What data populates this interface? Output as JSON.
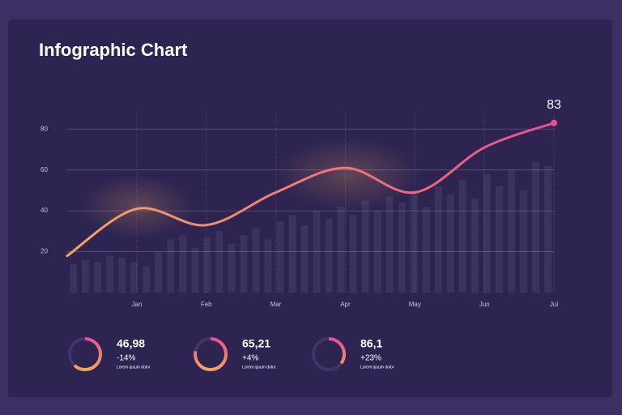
{
  "chart_data": {
    "type": "line",
    "title": "Infographic Chart",
    "categories": [
      null,
      "Jan",
      "Feb",
      "Mar",
      "Apr",
      "May",
      "Jun",
      "Jul"
    ],
    "values": [
      18,
      41,
      33,
      49,
      61,
      49,
      71,
      83
    ],
    "bars": [
      14,
      16,
      15,
      18,
      17,
      15,
      13,
      20,
      26,
      28,
      22,
      27,
      30,
      24,
      28,
      32,
      26,
      35,
      38,
      33,
      40,
      36,
      42,
      38,
      45,
      40,
      47,
      44,
      50,
      42,
      52,
      48,
      55,
      46,
      58,
      52,
      60,
      50,
      64,
      62
    ],
    "ylim": [
      0,
      90
    ],
    "yticks": [
      20,
      40,
      60,
      80
    ],
    "grid": true,
    "colors": [
      "#f6a55a",
      "#e84f91"
    ]
  },
  "kpis": [
    {
      "value": "46,98",
      "change": "-14%",
      "caption": "Lorem ipsum dolor",
      "ring": 62
    },
    {
      "value": "65,21",
      "change": "+4%",
      "caption": "Lorem ipsum dolor",
      "ring": 78
    },
    {
      "value": "86,1",
      "change": "+23%",
      "caption": "Lorem ipsum dolor",
      "ring": 35
    }
  ]
}
